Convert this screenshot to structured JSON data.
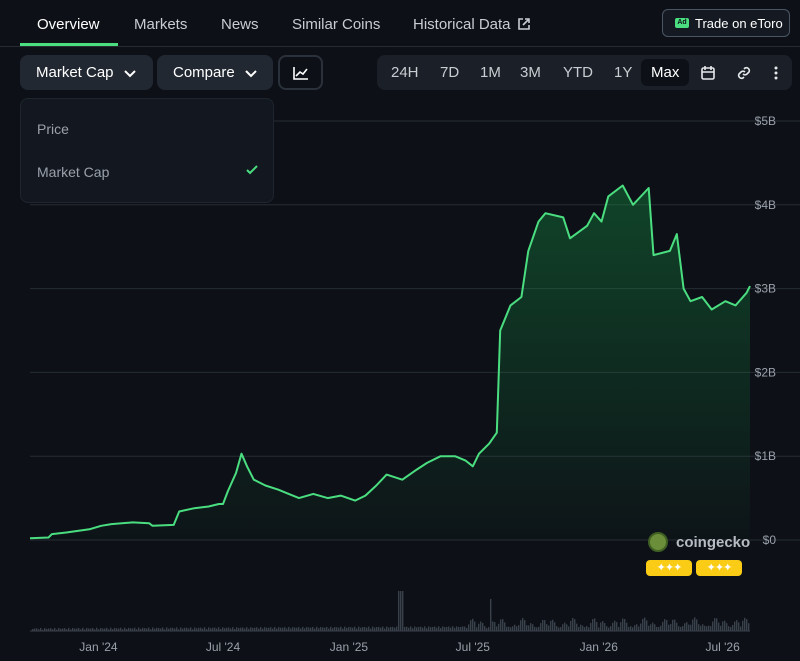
{
  "tabs": {
    "overview": "Overview",
    "markets": "Markets",
    "news": "News",
    "similar": "Similar Coins",
    "historical": "Historical Data"
  },
  "trade_button": {
    "badge": "Ad",
    "label": "Trade on eToro"
  },
  "toolbar": {
    "metric_label": "Market Cap",
    "compare_label": "Compare",
    "ranges": [
      "24H",
      "7D",
      "1M",
      "3M",
      "YTD",
      "1Y",
      "Max"
    ],
    "selected_range": "Max"
  },
  "dropdown": {
    "items": [
      "Price",
      "Market Cap"
    ],
    "selected": "Market Cap"
  },
  "branding": {
    "logo_text": "coingecko"
  },
  "colors": {
    "accent": "#4ade80",
    "background": "#0d1117",
    "grid": "#262b33"
  },
  "chart_data": {
    "type": "area",
    "ylabel": "",
    "xlabel": "",
    "y_ticks": [
      "$0",
      "$1B",
      "$2B",
      "$3B",
      "$4B",
      "$5B"
    ],
    "ylim": [
      0,
      5000000000
    ],
    "x_ticks": [
      {
        "label": "Jan '24",
        "date": "2024-01-01"
      },
      {
        "label": "Jul '24",
        "date": "2024-07-01"
      },
      {
        "label": "Jan '25",
        "date": "2025-01-01"
      },
      {
        "label": "Jul '25",
        "date": "2025-07-01"
      },
      {
        "label": "Jan '26",
        "date": "2026-01-01"
      },
      {
        "label": "Jul '26",
        "date": "2026-07-01"
      }
    ],
    "xlim": [
      "2023-09-23",
      "2026-08-10"
    ],
    "grid": true,
    "series": [
      {
        "points": [
          [
            "2023-09-23",
            20000000
          ],
          [
            "2023-10-20",
            30000000
          ],
          [
            "2023-10-25",
            70000000
          ],
          [
            "2023-11-15",
            90000000
          ],
          [
            "2023-12-20",
            130000000
          ],
          [
            "2024-01-05",
            170000000
          ],
          [
            "2024-01-20",
            190000000
          ],
          [
            "2024-02-20",
            210000000
          ],
          [
            "2024-03-15",
            200000000
          ],
          [
            "2024-03-20",
            170000000
          ],
          [
            "2024-04-20",
            180000000
          ],
          [
            "2024-04-28",
            340000000
          ],
          [
            "2024-05-20",
            380000000
          ],
          [
            "2024-06-10",
            400000000
          ],
          [
            "2024-06-25",
            430000000
          ],
          [
            "2024-07-01",
            430000000
          ],
          [
            "2024-07-08",
            580000000
          ],
          [
            "2024-07-20",
            800000000
          ],
          [
            "2024-07-28",
            1030000000
          ],
          [
            "2024-08-05",
            880000000
          ],
          [
            "2024-08-15",
            720000000
          ],
          [
            "2024-09-01",
            650000000
          ],
          [
            "2024-09-20",
            600000000
          ],
          [
            "2024-10-05",
            550000000
          ],
          [
            "2024-10-20",
            500000000
          ],
          [
            "2024-11-10",
            550000000
          ],
          [
            "2024-12-01",
            500000000
          ],
          [
            "2024-12-20",
            530000000
          ],
          [
            "2025-01-10",
            470000000
          ],
          [
            "2025-01-25",
            530000000
          ],
          [
            "2025-02-10",
            650000000
          ],
          [
            "2025-02-25",
            780000000
          ],
          [
            "2025-03-20",
            720000000
          ],
          [
            "2025-04-10",
            840000000
          ],
          [
            "2025-04-25",
            920000000
          ],
          [
            "2025-05-15",
            1000000000
          ],
          [
            "2025-06-05",
            1000000000
          ],
          [
            "2025-06-20",
            950000000
          ],
          [
            "2025-07-01",
            880000000
          ],
          [
            "2025-07-10",
            1030000000
          ],
          [
            "2025-07-25",
            1150000000
          ],
          [
            "2025-08-05",
            1280000000
          ],
          [
            "2025-08-10",
            2500000000
          ],
          [
            "2025-08-25",
            2800000000
          ],
          [
            "2025-09-10",
            2900000000
          ],
          [
            "2025-09-20",
            3450000000
          ],
          [
            "2025-10-05",
            3800000000
          ],
          [
            "2025-10-15",
            3900000000
          ],
          [
            "2025-11-10",
            3850000000
          ],
          [
            "2025-11-20",
            3600000000
          ],
          [
            "2025-12-15",
            3750000000
          ],
          [
            "2025-12-25",
            3900000000
          ],
          [
            "2026-01-05",
            3800000000
          ],
          [
            "2026-01-15",
            4100000000
          ],
          [
            "2026-02-05",
            4230000000
          ],
          [
            "2026-02-20",
            4000000000
          ],
          [
            "2026-03-15",
            4200000000
          ],
          [
            "2026-03-22",
            3400000000
          ],
          [
            "2026-04-15",
            3450000000
          ],
          [
            "2026-04-25",
            3650000000
          ],
          [
            "2026-05-05",
            3000000000
          ],
          [
            "2026-05-15",
            2850000000
          ],
          [
            "2026-06-01",
            2900000000
          ],
          [
            "2026-06-15",
            2750000000
          ],
          [
            "2026-07-05",
            2850000000
          ],
          [
            "2026-07-20",
            2800000000
          ],
          [
            "2026-08-05",
            2950000000
          ],
          [
            "2026-08-10",
            3030000000
          ]
        ]
      }
    ]
  }
}
